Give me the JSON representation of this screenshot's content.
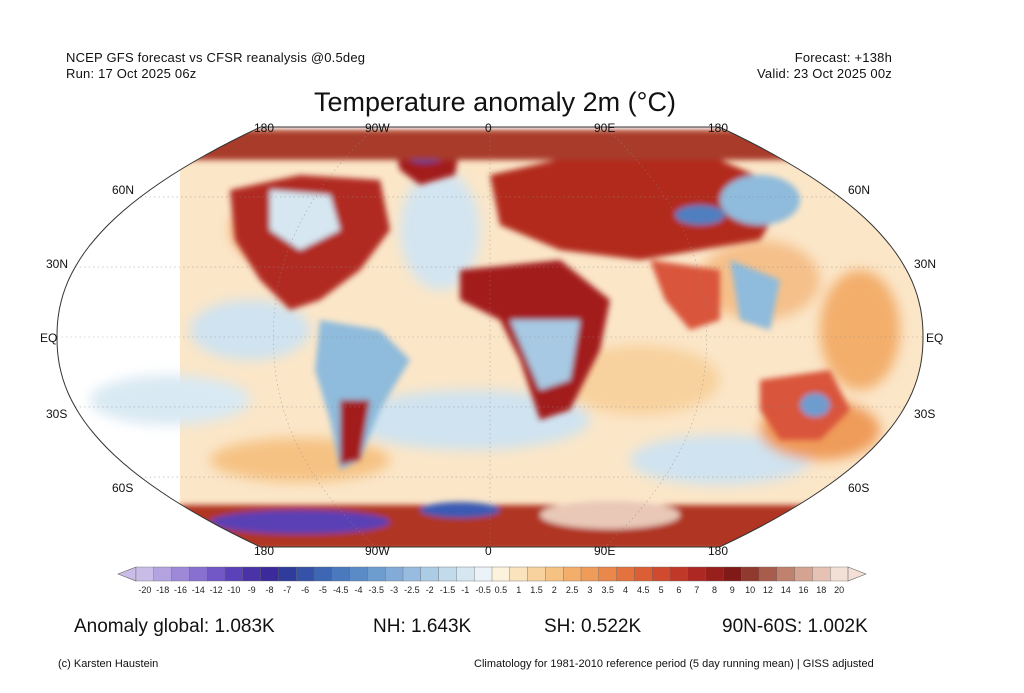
{
  "header": {
    "line1": "NCEP GFS forecast vs CFSR reanalysis @0.5deg",
    "line2": "Run: 17 Oct 2025 06z",
    "forecast": "Forecast: +138h",
    "valid": "Valid: 23 Oct 2025 00z"
  },
  "title": "Temperature anomaly 2m (°C)",
  "map": {
    "top_lon_labels": [
      "180",
      "90W",
      "0",
      "90E",
      "180"
    ],
    "bottom_lon_labels": [
      "180",
      "90W",
      "0",
      "90E",
      "180"
    ],
    "lat_labels": [
      "60N",
      "30N",
      "EQ",
      "30S",
      "60S"
    ],
    "projection": "Robinson",
    "colors": {
      "ocean_neutral": "#fbe6c8",
      "warm_strong": "#a31d1d",
      "warm_mid": "#e8623c",
      "warm_light": "#f5b77f",
      "cool_light": "#cfe3f0",
      "cool_mid": "#8fbbdc",
      "cool_strong": "#4f7fc0",
      "very_cold": "#5a3fb5"
    }
  },
  "colorbar": {
    "ticks": [
      "-20",
      "-18",
      "-16",
      "-14",
      "-12",
      "-10",
      "-9",
      "-8",
      "-7",
      "-6",
      "-5",
      "-4.5",
      "-4",
      "-3.5",
      "-3",
      "-2.5",
      "-2",
      "-1.5",
      "-1",
      "-0.5",
      "0.5",
      "1",
      "1.5",
      "2",
      "2.5",
      "3",
      "3.5",
      "4",
      "4.5",
      "5",
      "6",
      "7",
      "8",
      "9",
      "10",
      "12",
      "14",
      "16",
      "18",
      "20"
    ],
    "colors": [
      "#c9bde8",
      "#b3a3e0",
      "#9d89d8",
      "#8770d0",
      "#7158c6",
      "#5c42b8",
      "#4a33a6",
      "#3a2a9a",
      "#2f3c9c",
      "#3551a8",
      "#3d66b4",
      "#4a79be",
      "#5a8bc7",
      "#6d9ccf",
      "#82acd7",
      "#97bcdf",
      "#acccE6",
      "#c1daec",
      "#d6e7f2",
      "#ebf3f8",
      "#fdf3dc",
      "#fbe3bd",
      "#f8d29e",
      "#f6c283",
      "#f3ae6c",
      "#ef9b5a",
      "#ea874b",
      "#e4723f",
      "#dc5e35",
      "#cf4a2e",
      "#c03828",
      "#ad2822",
      "#97201d",
      "#7f1a19",
      "#8f3a2f",
      "#a85d4c",
      "#c0826f",
      "#d4a392",
      "#e5c2b4",
      "#f2dfd5"
    ]
  },
  "stats": {
    "global": "Anomaly global: 1.083K",
    "nh": "NH: 1.643K",
    "sh": "SH: 0.522K",
    "nh_high": "90N-60S: 1.002K"
  },
  "footer": {
    "credit": "(c) Karsten Haustein",
    "note": "Climatology for 1981-2010 reference period (5 day running mean) | GISS adjusted"
  }
}
